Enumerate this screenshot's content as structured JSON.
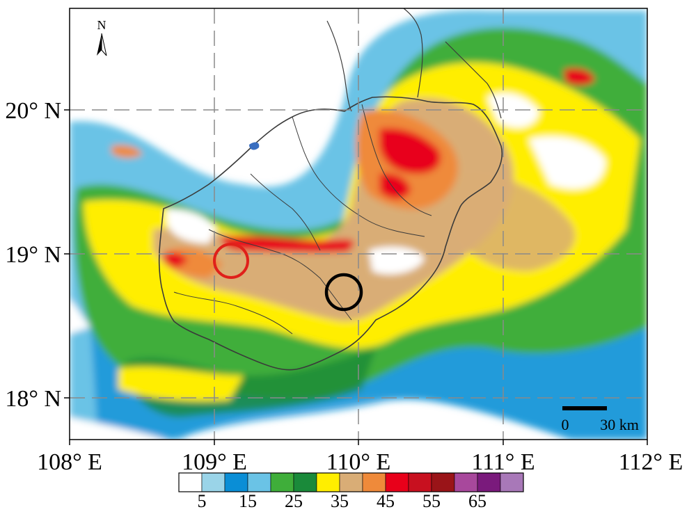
{
  "map": {
    "axes": {
      "x_ticks": [
        "108° E",
        "109° E",
        "110° E",
        "111° E",
        "112° E"
      ],
      "y_ticks": [
        "20° N",
        "19° N",
        "18° N"
      ]
    },
    "north_arrow_label": "N",
    "scale_bar": {
      "zero_label": "0",
      "length_label": "30 km"
    },
    "colorbar": {
      "labels": [
        "5",
        "15",
        "25",
        "35",
        "45",
        "55",
        "65"
      ],
      "colors": [
        "#ffffff",
        "#9ad4e8",
        "#0a8ed6",
        "#6ac3e6",
        "#3fae3a",
        "#1a8a3a",
        "#ffee00",
        "#d9ad76",
        "#ef8a3a",
        "#e8001a",
        "#c8101f",
        "#9a1418",
        "#a8489c",
        "#7a1a7c",
        "#a878b8"
      ]
    },
    "markers": [
      {
        "name": "red-circle",
        "color": "#e0201a"
      },
      {
        "name": "black-circle",
        "color": "#000000"
      }
    ]
  }
}
